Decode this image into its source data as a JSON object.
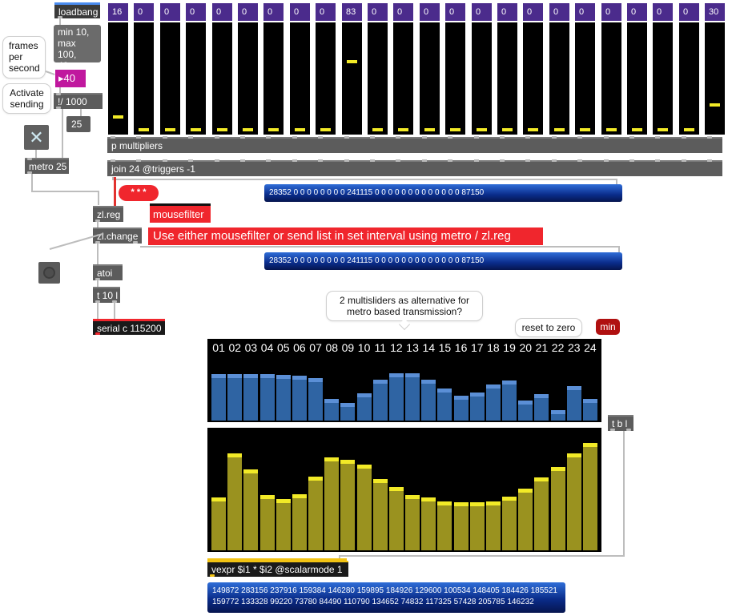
{
  "patch": {
    "loadbang": "loadbang",
    "fps_range_note": "min 10,\nmax 100,\n40",
    "frames_per_second_comment": "frames\nper\nsecond",
    "fps_value": "40",
    "divide_object": "!/ 1000",
    "interval_value": "25",
    "activate_comment": "Activate\nsending",
    "metro_object": "metro 25",
    "multipliers_object": "p multipliers",
    "join_object": "join 24 @triggers -1",
    "dots_label": "* * *",
    "zlreg_object": "zl.reg",
    "mousefilter_object": "mousefilter",
    "zlchange_object": "zl.change",
    "instruction_label": "Use either mousefilter or send list in set interval using metro / zl.reg",
    "list_message_1": "28352 0 0 0 0 0 0 0 0 241115 0 0 0 0 0 0 0 0 0 0 0 0 0 87150",
    "list_message_2": "28352 0 0 0 0 0 0 0 0 241115 0 0 0 0 0 0 0 0 0 0 0 0 0 87150",
    "atoi_object": "atoi",
    "t10l_object": "t 10 l",
    "serial_object": "serial c 115200",
    "multislider_comment": "2 multisliders as alternative for metro based transmission?",
    "reset_comment": "reset to zero",
    "min_button": "min",
    "tbl_object": "t b l",
    "vexpr_object": "vexpr $i1 * $i2 @scalarmode 1",
    "vexpr_output_line1": "149872 283156 237916 159384 146280 159895 184926 129600 100534 148405 184426 185521",
    "vexpr_output_line2": "159772 133328 99220 73780 84490 110790 134652 74832 117325 57428 205785 146232"
  },
  "sliders": {
    "numbers": [
      "16",
      "0",
      "0",
      "0",
      "0",
      "0",
      "0",
      "0",
      "0",
      "83",
      "0",
      "0",
      "0",
      "0",
      "0",
      "0",
      "0",
      "0",
      "0",
      "0",
      "0",
      "0",
      "0",
      "30"
    ],
    "levels": [
      16,
      0,
      0,
      0,
      0,
      0,
      0,
      0,
      0,
      83,
      0,
      0,
      0,
      0,
      0,
      0,
      0,
      0,
      0,
      0,
      0,
      0,
      0,
      30
    ]
  },
  "multislider_top": {
    "labels": [
      "01",
      "02",
      "03",
      "04",
      "05",
      "06",
      "07",
      "08",
      "09",
      "10",
      "11",
      "12",
      "13",
      "14",
      "15",
      "16",
      "17",
      "18",
      "19",
      "20",
      "21",
      "22",
      "23",
      "24"
    ],
    "levels": [
      0.74,
      0.74,
      0.74,
      0.74,
      0.73,
      0.72,
      0.68,
      0.35,
      0.28,
      0.43,
      0.65,
      0.76,
      0.75,
      0.66,
      0.51,
      0.4,
      0.45,
      0.58,
      0.64,
      0.32,
      0.42,
      0.17,
      0.55,
      0.35
    ]
  },
  "multislider_bottom": {
    "levels": [
      0.44,
      0.81,
      0.68,
      0.46,
      0.43,
      0.47,
      0.62,
      0.78,
      0.76,
      0.72,
      0.6,
      0.53,
      0.46,
      0.44,
      0.41,
      0.4,
      0.4,
      0.41,
      0.45,
      0.52,
      0.61,
      0.7,
      0.81,
      0.9
    ]
  },
  "colors": {
    "slider_knob": "#f2ea27",
    "number_box": "#4b2b8c",
    "top_bars": "#2f64a3",
    "bottom_bars": "#9a921f"
  }
}
